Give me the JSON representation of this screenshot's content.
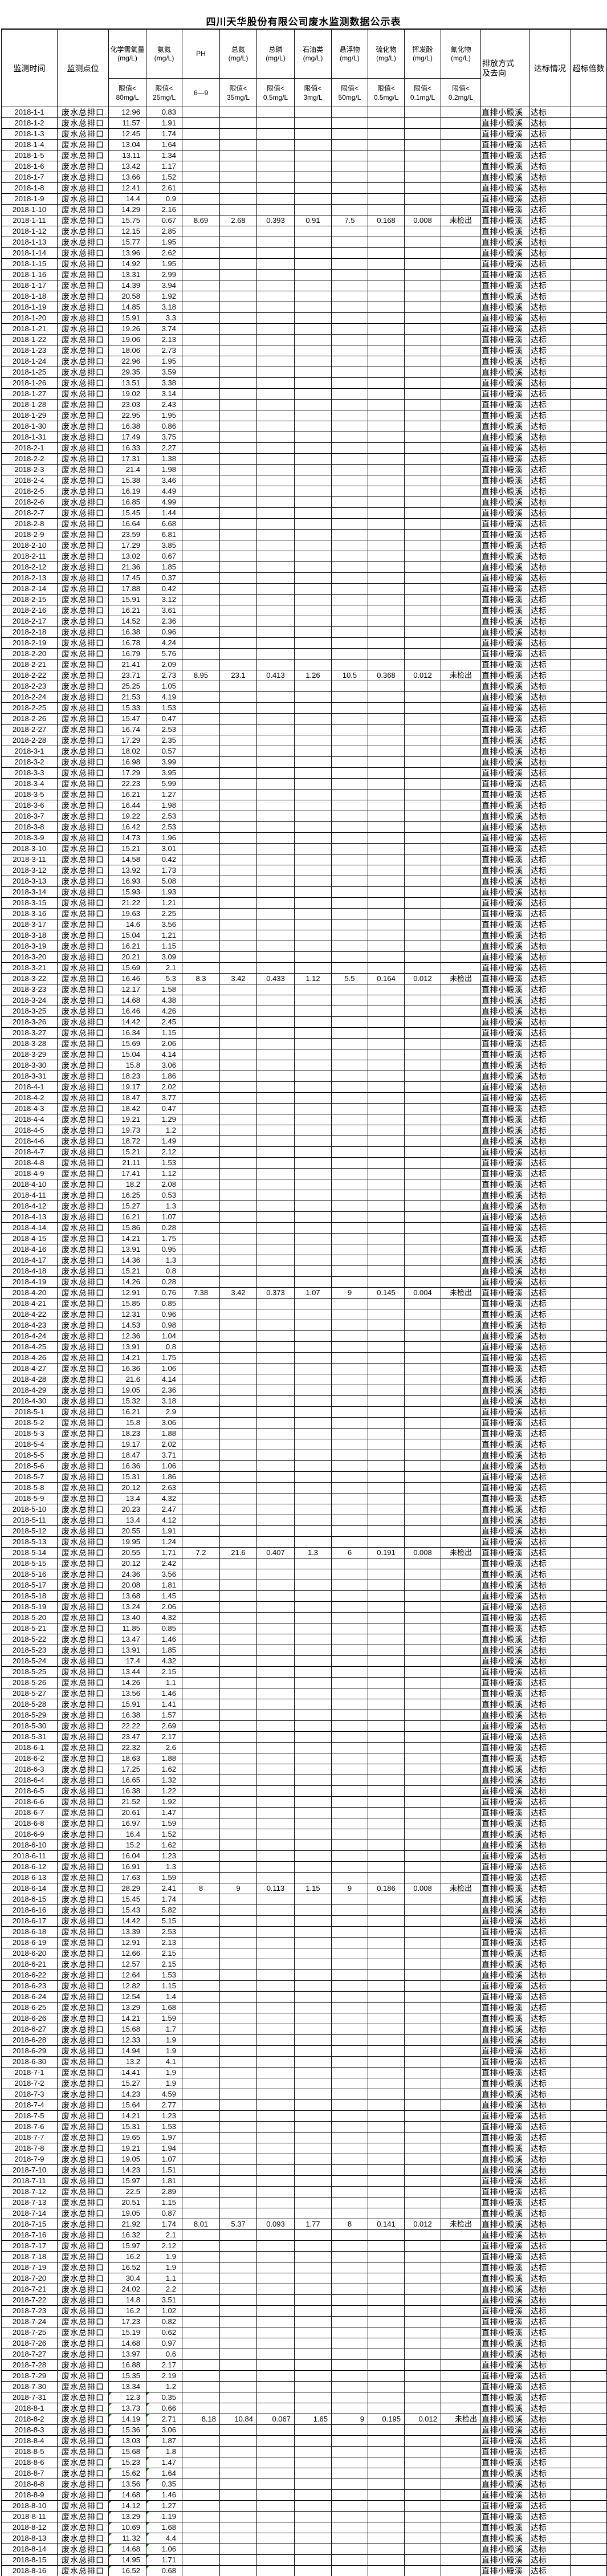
{
  "title": "四川天华股份有限公司废水监测数据公示表",
  "header": {
    "time": "监测时间",
    "site": "监测点位",
    "discharge": "排放方式及去向",
    "status": "达标情况",
    "exceed": "超标倍数",
    "params": [
      {
        "name": "化学需氧量",
        "unit": "(mg/L)",
        "limit": "限值<",
        "limit_value": "80mg/L"
      },
      {
        "name": "氨氮",
        "unit": "(mg/L)",
        "limit": "限值<",
        "limit_value": "25mg/L"
      },
      {
        "name": "PH",
        "unit": "",
        "limit": "6—9",
        "limit_value": ""
      },
      {
        "name": "总氮",
        "unit": "(mg/L)",
        "limit": "限值<",
        "limit_value": "35mg/L"
      },
      {
        "name": "总磷",
        "unit": "(mg/L)",
        "limit": "限值<",
        "limit_value": "0.5mg/L"
      },
      {
        "name": "石油类",
        "unit": "(mg/L)",
        "limit": "限值<",
        "limit_value": "3mg/L"
      },
      {
        "name": "悬浮物",
        "unit": "(mg/L)",
        "limit": "限值<",
        "limit_value": "50mg/L"
      },
      {
        "name": "硫化物",
        "unit": "(mg/L)",
        "limit": "限值<",
        "limit_value": "0.5mg/L"
      },
      {
        "name": "挥发酚",
        "unit": "(mg/L)",
        "limit": "限值<",
        "limit_value": "0.1mg/L"
      },
      {
        "name": "氰化物",
        "unit": "(mg/L)",
        "limit": "限值<",
        "limit_value": "0.2mg/L"
      }
    ]
  },
  "row_defaults": {
    "site": "废水总排口",
    "discharge": "直排小殿溪",
    "status": "达标",
    "exceed": ""
  },
  "not_detected_label": "未检出",
  "rows": [
    {
      "d": "2018-1-1",
      "c": "12.96",
      "n": "0.83"
    },
    {
      "d": "2018-1-2",
      "c": "11.57",
      "n": "1.91"
    },
    {
      "d": "2018-1-3",
      "c": "12.45",
      "n": "1.74"
    },
    {
      "d": "2018-1-4",
      "c": "13.04",
      "n": "1.64"
    },
    {
      "d": "2018-1-5",
      "c": "13.11",
      "n": "1.34"
    },
    {
      "d": "2018-1-6",
      "c": "13.42",
      "n": "1.17"
    },
    {
      "d": "2018-1-7",
      "c": "13.66",
      "n": "1.52"
    },
    {
      "d": "2018-1-8",
      "c": "12.41",
      "n": "2.61"
    },
    {
      "d": "2018-1-9",
      "c": "14.4",
      "n": "0.9"
    },
    {
      "d": "2018-1-10",
      "c": "14.29",
      "n": "2.16"
    },
    {
      "d": "2018-1-11",
      "c": "15.75",
      "n": "0.67",
      "f": [
        "8.69",
        "2.68",
        "0.393",
        "0.91",
        "7.5",
        "0.168",
        "0.008",
        "未检出"
      ]
    },
    {
      "d": "2018-1-12",
      "c": "12.15",
      "n": "2.85"
    },
    {
      "d": "2018-1-13",
      "c": "15.77",
      "n": "1.95"
    },
    {
      "d": "2018-1-14",
      "c": "13.96",
      "n": "2.62"
    },
    {
      "d": "2018-1-15",
      "c": "14.92",
      "n": "1.95"
    },
    {
      "d": "2018-1-16",
      "c": "13.31",
      "n": "2.99"
    },
    {
      "d": "2018-1-17",
      "c": "14.39",
      "n": "3.94"
    },
    {
      "d": "2018-1-18",
      "c": "20.58",
      "n": "1.92"
    },
    {
      "d": "2018-1-19",
      "c": "14.85",
      "n": "3.18"
    },
    {
      "d": "2018-1-20",
      "c": "15.91",
      "n": "3.3"
    },
    {
      "d": "2018-1-21",
      "c": "19.26",
      "n": "3.74"
    },
    {
      "d": "2018-1-22",
      "c": "19.06",
      "n": "2.13"
    },
    {
      "d": "2018-1-23",
      "c": "18.06",
      "n": "2.73"
    },
    {
      "d": "2018-1-24",
      "c": "22.96",
      "n": "1.95"
    },
    {
      "d": "2018-1-25",
      "c": "29.35",
      "n": "3.59"
    },
    {
      "d": "2018-1-26",
      "c": "13.51",
      "n": "3.38"
    },
    {
      "d": "2018-1-27",
      "c": "19.02",
      "n": "3.14"
    },
    {
      "d": "2018-1-28",
      "c": "23.03",
      "n": "2.43"
    },
    {
      "d": "2018-1-29",
      "c": "22.95",
      "n": "1.95"
    },
    {
      "d": "2018-1-30",
      "c": "16.38",
      "n": "0.86"
    },
    {
      "d": "2018-1-31",
      "c": "17.49",
      "n": "3.75"
    },
    {
      "d": "2018-2-1",
      "c": "16.33",
      "n": "2.27"
    },
    {
      "d": "2018-2-2",
      "c": "17.31",
      "n": "1.38"
    },
    {
      "d": "2018-2-3",
      "c": "21.4",
      "n": "1.98"
    },
    {
      "d": "2018-2-4",
      "c": "15.38",
      "n": "3.46"
    },
    {
      "d": "2018-2-5",
      "c": "16.19",
      "n": "4.49"
    },
    {
      "d": "2018-2-6",
      "c": "16.85",
      "n": "4.99"
    },
    {
      "d": "2018-2-7",
      "c": "15.45",
      "n": "1.44"
    },
    {
      "d": "2018-2-8",
      "c": "16.64",
      "n": "6.68"
    },
    {
      "d": "2018-2-9",
      "c": "23.59",
      "n": "6.81"
    },
    {
      "d": "2018-2-10",
      "c": "17.29",
      "n": "3.85"
    },
    {
      "d": "2018-2-11",
      "c": "13.02",
      "n": "0.67"
    },
    {
      "d": "2018-2-12",
      "c": "21.36",
      "n": "1.85"
    },
    {
      "d": "2018-2-13",
      "c": "17.45",
      "n": "0.37"
    },
    {
      "d": "2018-2-14",
      "c": "17.88",
      "n": "0.42"
    },
    {
      "d": "2018-2-15",
      "c": "15.91",
      "n": "3.12"
    },
    {
      "d": "2018-2-16",
      "c": "16.21",
      "n": "3.61"
    },
    {
      "d": "2018-2-17",
      "c": "14.52",
      "n": "2.36"
    },
    {
      "d": "2018-2-18",
      "c": "16.38",
      "n": "0.96"
    },
    {
      "d": "2018-2-19",
      "c": "16.78",
      "n": "4.24"
    },
    {
      "d": "2018-2-20",
      "c": "16.79",
      "n": "5.76"
    },
    {
      "d": "2018-2-21",
      "c": "21.41",
      "n": "2.09"
    },
    {
      "d": "2018-2-22",
      "c": "23.71",
      "n": "2.73",
      "f": [
        "8.95",
        "23.1",
        "0.413",
        "1.26",
        "10.5",
        "0.368",
        "0.012",
        "未检出"
      ]
    },
    {
      "d": "2018-2-23",
      "c": "25.25",
      "n": "1.05"
    },
    {
      "d": "2018-2-24",
      "c": "21.53",
      "n": "4.19"
    },
    {
      "d": "2018-2-25",
      "c": "15.33",
      "n": "1.53"
    },
    {
      "d": "2018-2-26",
      "c": "15.47",
      "n": "0.47"
    },
    {
      "d": "2018-2-27",
      "c": "16.74",
      "n": "2.53"
    },
    {
      "d": "2018-2-28",
      "c": "17.29",
      "n": "2.35"
    },
    {
      "d": "2018-3-1",
      "c": "18.02",
      "n": "0.57"
    },
    {
      "d": "2018-3-2",
      "c": "16.98",
      "n": "3.99"
    },
    {
      "d": "2018-3-3",
      "c": "17.29",
      "n": "3.95"
    },
    {
      "d": "2018-3-4",
      "c": "22.23",
      "n": "5.99"
    },
    {
      "d": "2018-3-5",
      "c": "16.21",
      "n": "1.27"
    },
    {
      "d": "2018-3-6",
      "c": "16.44",
      "n": "1.98"
    },
    {
      "d": "2018-3-7",
      "c": "19.22",
      "n": "2.53"
    },
    {
      "d": "2018-3-8",
      "c": "16.42",
      "n": "2.53"
    },
    {
      "d": "2018-3-9",
      "c": "14.73",
      "n": "1.96"
    },
    {
      "d": "2018-3-10",
      "c": "15.21",
      "n": "3.01"
    },
    {
      "d": "2018-3-11",
      "c": "14.58",
      "n": "0.42"
    },
    {
      "d": "2018-3-12",
      "c": "13.92",
      "n": "1.73"
    },
    {
      "d": "2018-3-13",
      "c": "16.93",
      "n": "5.08"
    },
    {
      "d": "2018-3-14",
      "c": "15.93",
      "n": "1.93"
    },
    {
      "d": "2018-3-15",
      "c": "21.22",
      "n": "1.21"
    },
    {
      "d": "2018-3-16",
      "c": "19.63",
      "n": "2.25"
    },
    {
      "d": "2018-3-17",
      "c": "14.6",
      "n": "3.56"
    },
    {
      "d": "2018-3-18",
      "c": "15.04",
      "n": "1.21"
    },
    {
      "d": "2018-3-19",
      "c": "16.21",
      "n": "1.15"
    },
    {
      "d": "2018-3-20",
      "c": "20.21",
      "n": "3.09"
    },
    {
      "d": "2018-3-21",
      "c": "15.69",
      "n": "2.1"
    },
    {
      "d": "2018-3-22",
      "c": "16.46",
      "n": "5.3",
      "f": [
        "8.3",
        "3.42",
        "0.433",
        "1.12",
        "5.5",
        "0.164",
        "0.012",
        "未检出"
      ]
    },
    {
      "d": "2018-3-23",
      "c": "12.17",
      "n": "1.58"
    },
    {
      "d": "2018-3-24",
      "c": "14.68",
      "n": "4.38"
    },
    {
      "d": "2018-3-25",
      "c": "16.46",
      "n": "4.26"
    },
    {
      "d": "2018-3-26",
      "c": "14.42",
      "n": "2.45"
    },
    {
      "d": "2018-3-27",
      "c": "16.34",
      "n": "1.15"
    },
    {
      "d": "2018-3-28",
      "c": "15.69",
      "n": "2.06"
    },
    {
      "d": "2018-3-29",
      "c": "15.04",
      "n": "4.14"
    },
    {
      "d": "2018-3-30",
      "c": "15.8",
      "n": "3.06"
    },
    {
      "d": "2018-3-31",
      "c": "18.23",
      "n": "1.86"
    },
    {
      "d": "2018-4-1",
      "c": "19.17",
      "n": "2.02"
    },
    {
      "d": "2018-4-2",
      "c": "18.47",
      "n": "3.77"
    },
    {
      "d": "2018-4-3",
      "c": "18.42",
      "n": "0.47"
    },
    {
      "d": "2018-4-4",
      "c": "19.21",
      "n": "1.29"
    },
    {
      "d": "2018-4-5",
      "c": "19.73",
      "n": "1.2"
    },
    {
      "d": "2018-4-6",
      "c": "18.72",
      "n": "1.49"
    },
    {
      "d": "2018-4-7",
      "c": "15.21",
      "n": "2.12"
    },
    {
      "d": "2018-4-8",
      "c": "21.11",
      "n": "1.53"
    },
    {
      "d": "2018-4-9",
      "c": "17.41",
      "n": "1.12"
    },
    {
      "d": "2018-4-10",
      "c": "18.2",
      "n": "2.08"
    },
    {
      "d": "2018-4-11",
      "c": "16.25",
      "n": "0.53"
    },
    {
      "d": "2018-4-12",
      "c": "15.27",
      "n": "1.3"
    },
    {
      "d": "2018-4-13",
      "c": "16.21",
      "n": "1.07"
    },
    {
      "d": "2018-4-14",
      "c": "15.86",
      "n": "0.28"
    },
    {
      "d": "2018-4-15",
      "c": "14.21",
      "n": "1.75"
    },
    {
      "d": "2018-4-16",
      "c": "13.91",
      "n": "0.95"
    },
    {
      "d": "2018-4-17",
      "c": "14.36",
      "n": "1.3"
    },
    {
      "d": "2018-4-18",
      "c": "15.21",
      "n": "0.8"
    },
    {
      "d": "2018-4-19",
      "c": "14.26",
      "n": "0.28"
    },
    {
      "d": "2018-4-20",
      "c": "12.91",
      "n": "0.76",
      "f": [
        "7.38",
        "3.42",
        "0.373",
        "1.07",
        "9",
        "0.145",
        "0.004",
        "未检出"
      ]
    },
    {
      "d": "2018-4-21",
      "c": "15.85",
      "n": "0.85"
    },
    {
      "d": "2018-4-22",
      "c": "12.31",
      "n": "0.96"
    },
    {
      "d": "2018-4-23",
      "c": "14.53",
      "n": "0.98"
    },
    {
      "d": "2018-4-24",
      "c": "12.36",
      "n": "1.04"
    },
    {
      "d": "2018-4-25",
      "c": "13.91",
      "n": "0.8"
    },
    {
      "d": "2018-4-26",
      "c": "14.21",
      "n": "1.75"
    },
    {
      "d": "2018-4-27",
      "c": "16.36",
      "n": "1.06"
    },
    {
      "d": "2018-4-28",
      "c": "21.6",
      "n": "4.14"
    },
    {
      "d": "2018-4-29",
      "c": "19.05",
      "n": "2.36"
    },
    {
      "d": "2018-4-30",
      "c": "15.32",
      "n": "3.18"
    },
    {
      "d": "2018-5-1",
      "c": "16.21",
      "n": "2.9"
    },
    {
      "d": "2018-5-2",
      "c": "15.8",
      "n": "3.06"
    },
    {
      "d": "2018-5-3",
      "c": "18.23",
      "n": "1.88"
    },
    {
      "d": "2018-5-4",
      "c": "19.17",
      "n": "2.02"
    },
    {
      "d": "2018-5-5",
      "c": "18.47",
      "n": "3.71"
    },
    {
      "d": "2018-5-6",
      "c": "16.36",
      "n": "1.06"
    },
    {
      "d": "2018-5-7",
      "c": "15.31",
      "n": "1.86"
    },
    {
      "d": "2018-5-8",
      "c": "20.12",
      "n": "2.63"
    },
    {
      "d": "2018-5-9",
      "c": "13.4",
      "n": "4.32"
    },
    {
      "d": "2018-5-10",
      "c": "20.23",
      "n": "2.47"
    },
    {
      "d": "2018-5-11",
      "c": "13.4",
      "n": "4.12"
    },
    {
      "d": "2018-5-12",
      "c": "20.55",
      "n": "1.91"
    },
    {
      "d": "2018-5-13",
      "c": "19.95",
      "n": "1.24"
    },
    {
      "d": "2018-5-14",
      "c": "20.55",
      "n": "1.71",
      "f": [
        "7.2",
        "21.6",
        "0.407",
        "1.3",
        "6",
        "0.191",
        "0.008",
        "未检出"
      ]
    },
    {
      "d": "2018-5-15",
      "c": "20.12",
      "n": "2.42"
    },
    {
      "d": "2018-5-16",
      "c": "24.36",
      "n": "3.56"
    },
    {
      "d": "2018-5-17",
      "c": "20.08",
      "n": "1.81"
    },
    {
      "d": "2018-5-18",
      "c": "13.68",
      "n": "1.45"
    },
    {
      "d": "2018-5-19",
      "c": "13.24",
      "n": "2.06"
    },
    {
      "d": "2018-5-20",
      "c": "13.40",
      "n": "4.32"
    },
    {
      "d": "2018-5-21",
      "c": "11.85",
      "n": "0.85"
    },
    {
      "d": "2018-5-22",
      "c": "13.47",
      "n": "1.46"
    },
    {
      "d": "2018-5-23",
      "c": "13.91",
      "n": "1.85"
    },
    {
      "d": "2018-5-24",
      "c": "17.4",
      "n": "4.32"
    },
    {
      "d": "2018-5-25",
      "c": "13.44",
      "n": "2.15"
    },
    {
      "d": "2018-5-26",
      "c": "14.26",
      "n": "1.1"
    },
    {
      "d": "2018-5-27",
      "c": "13.56",
      "n": "1.46"
    },
    {
      "d": "2018-5-28",
      "c": "15.91",
      "n": "1.41"
    },
    {
      "d": "2018-5-29",
      "c": "16.38",
      "n": "1.57"
    },
    {
      "d": "2018-5-30",
      "c": "22.22",
      "n": "2.69"
    },
    {
      "d": "2018-5-31",
      "c": "23.47",
      "n": "2.17"
    },
    {
      "d": "2018-6-1",
      "c": "22.32",
      "n": "2.6"
    },
    {
      "d": "2018-6-2",
      "c": "18.63",
      "n": "1.88"
    },
    {
      "d": "2018-6-3",
      "c": "17.25",
      "n": "1.62"
    },
    {
      "d": "2018-6-4",
      "c": "16.65",
      "n": "1.32"
    },
    {
      "d": "2018-6-5",
      "c": "16.38",
      "n": "1.22"
    },
    {
      "d": "2018-6-6",
      "c": "21.52",
      "n": "1.92"
    },
    {
      "d": "2018-6-7",
      "c": "20.61",
      "n": "1.47"
    },
    {
      "d": "2018-6-8",
      "c": "16.97",
      "n": "1.59"
    },
    {
      "d": "2018-6-9",
      "c": "16.4",
      "n": "1.52"
    },
    {
      "d": "2018-6-10",
      "c": "15.2",
      "n": "1.62"
    },
    {
      "d": "2018-6-11",
      "c": "16.04",
      "n": "1.23"
    },
    {
      "d": "2018-6-12",
      "c": "16.91",
      "n": "1.3"
    },
    {
      "d": "2018-6-13",
      "c": "17.63",
      "n": "1.59"
    },
    {
      "d": "2018-6-14",
      "c": "28.29",
      "n": "2.41",
      "f": [
        "8",
        "9",
        "0.113",
        "1.15",
        "9",
        "0.186",
        "0.008",
        "未检出"
      ]
    },
    {
      "d": "2018-6-15",
      "c": "15.45",
      "n": "1.74"
    },
    {
      "d": "2018-6-16",
      "c": "15.43",
      "n": "5.82"
    },
    {
      "d": "2018-6-17",
      "c": "14.42",
      "n": "5.15"
    },
    {
      "d": "2018-6-18",
      "c": "13.39",
      "n": "2.53"
    },
    {
      "d": "2018-6-19",
      "c": "12.91",
      "n": "2.13"
    },
    {
      "d": "2018-6-20",
      "c": "12.66",
      "n": "2.15"
    },
    {
      "d": "2018-6-21",
      "c": "12.57",
      "n": "2.15"
    },
    {
      "d": "2018-6-22",
      "c": "12.64",
      "n": "1.53"
    },
    {
      "d": "2018-6-23",
      "c": "12.82",
      "n": "1.15"
    },
    {
      "d": "2018-6-24",
      "c": "12.54",
      "n": "1.4"
    },
    {
      "d": "2018-6-25",
      "c": "13.29",
      "n": "1.68"
    },
    {
      "d": "2018-6-26",
      "c": "14.21",
      "n": "1.59"
    },
    {
      "d": "2018-6-27",
      "c": "15.68",
      "n": "1.7"
    },
    {
      "d": "2018-6-28",
      "c": "12.33",
      "n": "1.9"
    },
    {
      "d": "2018-6-29",
      "c": "14.94",
      "n": "1.9"
    },
    {
      "d": "2018-6-30",
      "c": "13.2",
      "n": "4.1"
    },
    {
      "d": "2018-7-1",
      "c": "14.41",
      "n": "1.9"
    },
    {
      "d": "2018-7-2",
      "c": "15.27",
      "n": "1.9"
    },
    {
      "d": "2018-7-3",
      "c": "14.23",
      "n": "4.59"
    },
    {
      "d": "2018-7-4",
      "c": "15.64",
      "n": "2.77"
    },
    {
      "d": "2018-7-5",
      "c": "14.21",
      "n": "1.23"
    },
    {
      "d": "2018-7-6",
      "c": "15.31",
      "n": "1.53"
    },
    {
      "d": "2018-7-7",
      "c": "19.65",
      "n": "1.97"
    },
    {
      "d": "2018-7-8",
      "c": "19.21",
      "n": "1.94"
    },
    {
      "d": "2018-7-9",
      "c": "19.05",
      "n": "1.07"
    },
    {
      "d": "2018-7-10",
      "c": "14.23",
      "n": "1.51"
    },
    {
      "d": "2018-7-11",
      "c": "15.97",
      "n": "1.81"
    },
    {
      "d": "2018-7-12",
      "c": "22.5",
      "n": "2.89"
    },
    {
      "d": "2018-7-13",
      "c": "20.51",
      "n": "1.15"
    },
    {
      "d": "2018-7-14",
      "c": "19.05",
      "n": "0.87"
    },
    {
      "d": "2018-7-15",
      "c": "21.92",
      "n": "1.74",
      "f": [
        "8.01",
        "5.37",
        "0.093",
        "1.77",
        "8",
        "0.141",
        "0.012",
        "未检出"
      ]
    },
    {
      "d": "2018-7-16",
      "c": "16.32",
      "n": "2.1"
    },
    {
      "d": "2018-7-17",
      "c": "15.97",
      "n": "2.12"
    },
    {
      "d": "2018-7-18",
      "c": "16.2",
      "n": "1.9"
    },
    {
      "d": "2018-7-19",
      "c": "16.52",
      "n": "1.9"
    },
    {
      "d": "2018-7-20",
      "c": "30.4",
      "n": "1.1"
    },
    {
      "d": "2018-7-21",
      "c": "24.02",
      "n": "2.2"
    },
    {
      "d": "2018-7-22",
      "c": "14.8",
      "n": "3.51"
    },
    {
      "d": "2018-7-23",
      "c": "16.2",
      "n": "1.02"
    },
    {
      "d": "2018-7-24",
      "c": "17.23",
      "n": "0.82"
    },
    {
      "d": "2018-7-25",
      "c": "15.19",
      "n": "0.62"
    },
    {
      "d": "2018-7-26",
      "c": "14.68",
      "n": "0.97"
    },
    {
      "d": "2018-7-27",
      "c": "13.97",
      "n": "0.6"
    },
    {
      "d": "2018-7-28",
      "c": "16.88",
      "n": "2.17"
    },
    {
      "d": "2018-7-29",
      "c": "15.35",
      "n": "2.19"
    },
    {
      "d": "2018-7-30",
      "c": "13.34",
      "n": "1.2"
    },
    {
      "d": "2018-7-31",
      "c": "12.3",
      "n": "0.35",
      "g": 1
    },
    {
      "d": "2018-8-1",
      "c": "13.73",
      "n": "0.66",
      "g": 1
    },
    {
      "d": "2018-8-2",
      "c": "14.19",
      "n": "2.71",
      "g": 1,
      "ra": 1,
      "f": [
        "8.18",
        "10.84",
        "0.067",
        "1.65",
        "9",
        "0.195",
        "0.012",
        "未检出"
      ]
    },
    {
      "d": "2018-8-3",
      "c": "15.36",
      "n": "3.06",
      "g": 1
    },
    {
      "d": "2018-8-4",
      "c": "13.03",
      "n": "1.87",
      "g": 1
    },
    {
      "d": "2018-8-5",
      "c": "15.68",
      "n": "1.8",
      "g": 1
    },
    {
      "d": "2018-8-6",
      "c": "15.23",
      "n": "1.47",
      "g": 1
    },
    {
      "d": "2018-8-7",
      "c": "15.62",
      "n": "1.64",
      "g": 1
    },
    {
      "d": "2018-8-8",
      "c": "13.56",
      "n": "0.35",
      "g": 1
    },
    {
      "d": "2018-8-9",
      "c": "14.68",
      "n": "1.46",
      "g": 1
    },
    {
      "d": "2018-8-10",
      "c": "14.12",
      "n": "1.27",
      "g": 1
    },
    {
      "d": "2018-8-11",
      "c": "13.29",
      "n": "1.19",
      "g": 1
    },
    {
      "d": "2018-8-12",
      "c": "10.69",
      "n": "1.68",
      "g": 1
    },
    {
      "d": "2018-8-13",
      "c": "11.32",
      "n": "4.4",
      "g": 1
    },
    {
      "d": "2018-8-14",
      "c": "14.68",
      "n": "1.06",
      "g": 1
    },
    {
      "d": "2018-8-15",
      "c": "14.95",
      "n": "1.71",
      "g": 1
    },
    {
      "d": "2018-8-16",
      "c": "16.52",
      "n": "0.68",
      "g": 1
    }
  ]
}
